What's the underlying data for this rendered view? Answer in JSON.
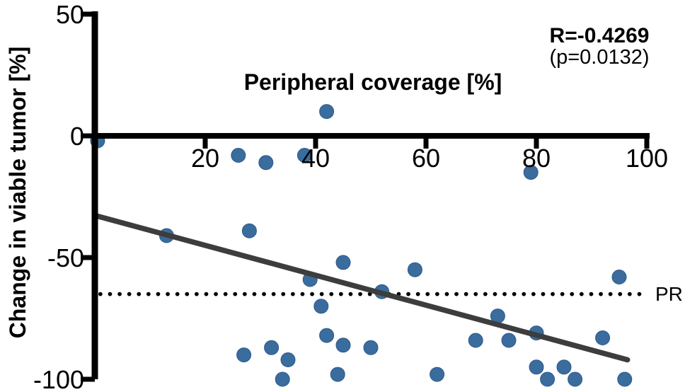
{
  "figure": {
    "title": "Peripheral coverage [%]",
    "y_axis_label": "Change in viable tumor [%]",
    "correlation_label": "R=-0.4269",
    "p_value_label": "(p=0.0132)",
    "pr_label": "PR"
  },
  "chart_data": {
    "type": "scatter",
    "title": "Peripheral coverage [%]",
    "xlabel": "Peripheral coverage [%]",
    "ylabel": "Change in viable tumor [%]",
    "xlim": [
      0,
      100
    ],
    "ylim": [
      -100,
      50
    ],
    "x_ticks": [
      20,
      40,
      60,
      80,
      100
    ],
    "y_ticks": [
      50,
      0,
      -50,
      -100
    ],
    "grid": false,
    "legend": "none",
    "annotations": {
      "correlation": "R=-0.4269",
      "p_value": "(p=0.0132)"
    },
    "reference_line": {
      "y": -65,
      "label": "PR",
      "style": "dotted"
    },
    "regression_line": {
      "x1": 0.5,
      "y1": -33,
      "x2": 96.5,
      "y2": -92
    },
    "points": [
      [
        0.5,
        -2
      ],
      [
        26,
        -8
      ],
      [
        31,
        -11
      ],
      [
        38,
        -8
      ],
      [
        42,
        10
      ],
      [
        79,
        -15
      ],
      [
        13,
        -41
      ],
      [
        28,
        -39
      ],
      [
        45,
        -52
      ],
      [
        39,
        -59
      ],
      [
        52,
        -64
      ],
      [
        58,
        -55
      ],
      [
        95,
        -58
      ],
      [
        41,
        -70
      ],
      [
        73,
        -74
      ],
      [
        80,
        -81
      ],
      [
        92,
        -83
      ],
      [
        69,
        -84
      ],
      [
        75,
        -84
      ],
      [
        42,
        -82
      ],
      [
        45,
        -86
      ],
      [
        50,
        -87
      ],
      [
        32,
        -87
      ],
      [
        27,
        -90
      ],
      [
        35,
        -92
      ],
      [
        80,
        -95
      ],
      [
        85,
        -95
      ],
      [
        34,
        -100
      ],
      [
        44,
        -98
      ],
      [
        62,
        -98
      ],
      [
        82,
        -100
      ],
      [
        87,
        -100
      ],
      [
        96,
        -100
      ]
    ],
    "colors": {
      "dot": "#3a6c9e",
      "dot_edge": "#2e5a88",
      "regression": "#3d3d3d",
      "axis": "#000000",
      "reference": "#000000"
    }
  }
}
